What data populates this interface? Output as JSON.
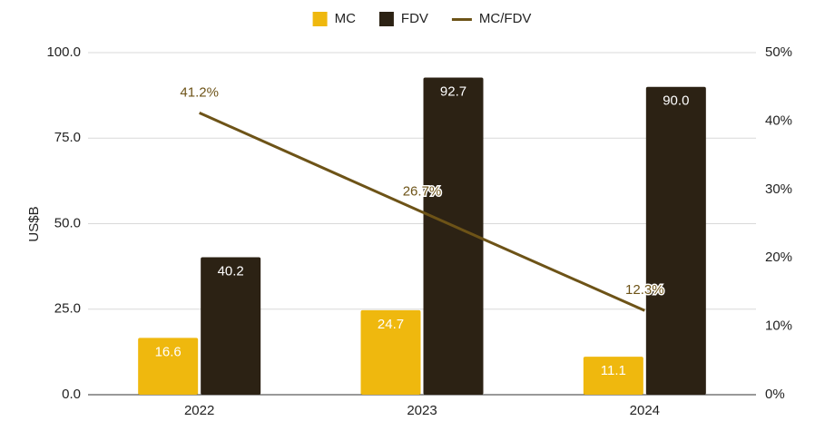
{
  "chart_data": {
    "type": "bar",
    "y_label": "US$B",
    "categories": [
      "2022",
      "2023",
      "2024"
    ],
    "series": [
      {
        "name": "MC",
        "color": "#efb80e",
        "values": [
          16.6,
          24.7,
          11.1
        ]
      },
      {
        "name": "FDV",
        "color": "#2c2214",
        "values": [
          40.2,
          92.7,
          90.0
        ],
        "value_labels": [
          "40.2",
          "92.7",
          "90.0"
        ]
      },
      {
        "name": "MC/FDV",
        "color": "#6d5317",
        "type": "line",
        "axis": "y2",
        "values": [
          41.2,
          26.7,
          12.3
        ],
        "value_labels": [
          "41.2%",
          "26.7%",
          "12.3%"
        ]
      }
    ],
    "ylim": [
      0,
      100
    ],
    "yticks": [
      {
        "value": 0,
        "label": "0.0"
      },
      {
        "value": 25,
        "label": "25.0"
      },
      {
        "value": 50,
        "label": "50.0"
      },
      {
        "value": 75,
        "label": "75.0"
      },
      {
        "value": 100,
        "label": "100.0"
      }
    ],
    "y2lim": [
      0,
      50
    ],
    "y2ticks": [
      {
        "value": 0,
        "label": "0%"
      },
      {
        "value": 10,
        "label": "10%"
      },
      {
        "value": 20,
        "label": "20%"
      },
      {
        "value": 30,
        "label": "30%"
      },
      {
        "value": 40,
        "label": "40%"
      },
      {
        "value": 50,
        "label": "50%"
      }
    ],
    "grid": true,
    "legend": "top"
  }
}
